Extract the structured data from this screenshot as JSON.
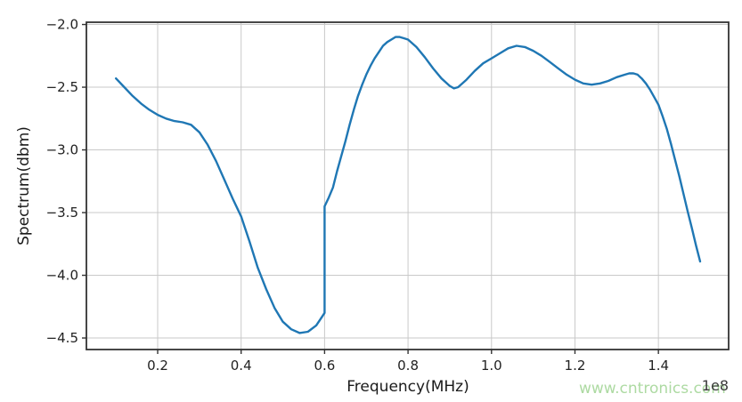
{
  "watermark": {
    "text": "www.cntronics.com",
    "color": "#addaa2"
  },
  "chart_data": {
    "type": "line",
    "title": "",
    "xlabel": "Frequency(MHz)",
    "ylabel": "Spectrum(dbm)",
    "offset_label": "1e8",
    "xlim": [
      0.0292,
      1.5683
    ],
    "ylim": [
      -4.592,
      -1.982
    ],
    "x_ticks": [
      0.2,
      0.4,
      0.6,
      0.8,
      1.0,
      1.2,
      1.4
    ],
    "y_ticks": [
      -2.0,
      -2.5,
      -3.0,
      -3.5,
      -4.0,
      -4.5
    ],
    "grid": true,
    "legend": "none",
    "line_color": "#1f77b4",
    "series": [
      {
        "name": "spectrum",
        "x": [
          0.1,
          0.12,
          0.14,
          0.16,
          0.18,
          0.2,
          0.22,
          0.24,
          0.26,
          0.28,
          0.3,
          0.32,
          0.34,
          0.36,
          0.38,
          0.4,
          0.42,
          0.44,
          0.46,
          0.48,
          0.5,
          0.52,
          0.54,
          0.56,
          0.58,
          0.59,
          0.6,
          0.6,
          0.61,
          0.62,
          0.63,
          0.64,
          0.65,
          0.66,
          0.67,
          0.68,
          0.69,
          0.7,
          0.71,
          0.72,
          0.73,
          0.74,
          0.75,
          0.76,
          0.77,
          0.78,
          0.79,
          0.8,
          0.82,
          0.84,
          0.86,
          0.88,
          0.9,
          0.91,
          0.92,
          0.94,
          0.96,
          0.98,
          1.0,
          1.02,
          1.04,
          1.06,
          1.08,
          1.1,
          1.12,
          1.14,
          1.16,
          1.18,
          1.2,
          1.22,
          1.24,
          1.26,
          1.28,
          1.3,
          1.32,
          1.33,
          1.34,
          1.35,
          1.36,
          1.37,
          1.38,
          1.39,
          1.4,
          1.41,
          1.42,
          1.43,
          1.44,
          1.45,
          1.46,
          1.47,
          1.48,
          1.49,
          1.5
        ],
        "y": [
          -2.43,
          -2.5,
          -2.57,
          -2.63,
          -2.68,
          -2.72,
          -2.75,
          -2.77,
          -2.78,
          -2.8,
          -2.86,
          -2.96,
          -3.09,
          -3.24,
          -3.39,
          -3.53,
          -3.73,
          -3.94,
          -4.11,
          -4.26,
          -4.37,
          -4.43,
          -4.46,
          -4.45,
          -4.4,
          -4.35,
          -4.3,
          -3.45,
          -3.38,
          -3.3,
          -3.17,
          -3.05,
          -2.93,
          -2.8,
          -2.68,
          -2.57,
          -2.48,
          -2.4,
          -2.33,
          -2.27,
          -2.22,
          -2.17,
          -2.14,
          -2.12,
          -2.1,
          -2.1,
          -2.11,
          -2.12,
          -2.18,
          -2.26,
          -2.35,
          -2.43,
          -2.49,
          -2.51,
          -2.5,
          -2.44,
          -2.37,
          -2.31,
          -2.27,
          -2.23,
          -2.19,
          -2.17,
          -2.18,
          -2.21,
          -2.25,
          -2.3,
          -2.35,
          -2.4,
          -2.44,
          -2.47,
          -2.48,
          -2.47,
          -2.45,
          -2.42,
          -2.4,
          -2.39,
          -2.39,
          -2.4,
          -2.43,
          -2.47,
          -2.52,
          -2.58,
          -2.64,
          -2.73,
          -2.83,
          -2.95,
          -3.08,
          -3.21,
          -3.35,
          -3.49,
          -3.62,
          -3.76,
          -3.89
        ]
      }
    ]
  }
}
